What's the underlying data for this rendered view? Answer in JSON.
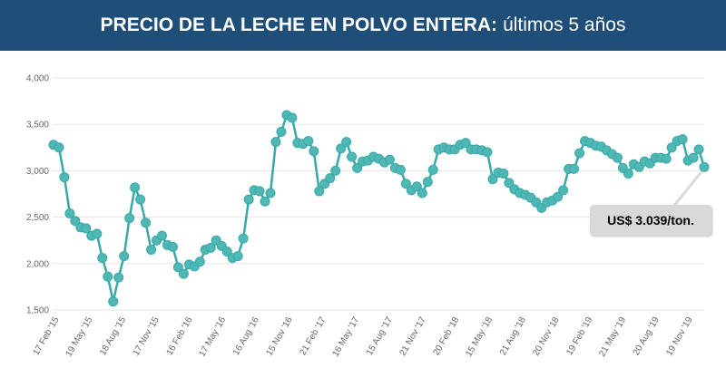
{
  "header": {
    "title_bold": "PRECIO DE LA LECHE EN POLVO ENTERA:",
    "title_normal": "últimos 5 años"
  },
  "callout": {
    "text": "US$ 3.039/ton."
  },
  "colors": {
    "header_bg": "#1f4e79",
    "line": "#3aa8a8",
    "marker": "#4fb8b5",
    "grid": "#e6e6e6",
    "callout_bg": "#d9d9d9"
  },
  "chart_data": {
    "type": "line",
    "title": "PRECIO DE LA LECHE EN POLVO ENTERA: últimos 5 años",
    "xlabel": "",
    "ylabel": "",
    "ylim": [
      1500,
      4000
    ],
    "yticks": [
      1500,
      2000,
      2500,
      3000,
      3500,
      4000
    ],
    "ytick_labels": [
      "1,500",
      "2,000",
      "2,500",
      "3,000",
      "3,500",
      "4,000"
    ],
    "xtick_labels": [
      "17 Feb '15",
      "19 May '15",
      "18 Aug '15",
      "17 Nov '15",
      "16 Feb '16",
      "17 May '16",
      "16 Aug '16",
      "15 Nov '16",
      "21 Feb '17",
      "16 May '17",
      "15 Aug '17",
      "21 Nov '17",
      "20 Feb '18",
      "15 May '18",
      "21 Aug '18",
      "20 Nov '18",
      "19 Feb '19",
      "21 May '19",
      "20 Aug '19",
      "19 Nov '19"
    ],
    "grid": true,
    "legend": "none",
    "series": [
      {
        "values": [
          3280,
          3250,
          2930,
          2540,
          2460,
          2390,
          2380,
          2300,
          2320,
          2060,
          1860,
          1590,
          1850,
          2080,
          2490,
          2820,
          2690,
          2440,
          2150,
          2250,
          2300,
          2200,
          2180,
          1960,
          1890,
          1990,
          1970,
          2020,
          2150,
          2170,
          2250,
          2190,
          2130,
          2060,
          2080,
          2270,
          2690,
          2790,
          2780,
          2670,
          2760,
          3310,
          3420,
          3600,
          3570,
          3300,
          3290,
          3320,
          3210,
          2780,
          2860,
          2920,
          3000,
          3240,
          3310,
          3150,
          3030,
          3100,
          3110,
          3150,
          3130,
          3090,
          3120,
          3030,
          3010,
          2860,
          2790,
          2830,
          2760,
          2880,
          3010,
          3230,
          3250,
          3230,
          3230,
          3280,
          3300,
          3230,
          3230,
          3220,
          3200,
          2910,
          2980,
          2970,
          2870,
          2800,
          2760,
          2740,
          2710,
          2660,
          2600,
          2660,
          2680,
          2720,
          2790,
          3020,
          3020,
          3190,
          3320,
          3300,
          3270,
          3260,
          3220,
          3180,
          3140,
          3030,
          2970,
          3070,
          3040,
          3100,
          3080,
          3140,
          3140,
          3130,
          3250,
          3320,
          3340,
          3110,
          3140,
          3230,
          3039
        ]
      }
    ]
  }
}
